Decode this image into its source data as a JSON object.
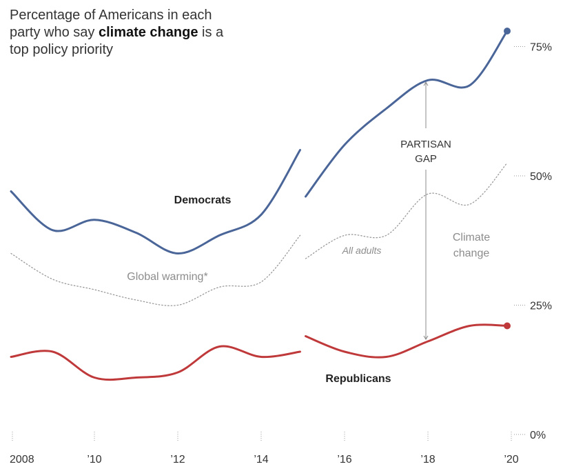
{
  "title": {
    "before": "Percentage of Americans in each party who say ",
    "bold": "climate change",
    "after": " is a top policy priority"
  },
  "colors": {
    "democrats": "#4a6598",
    "republicans": "#c0393a",
    "all_adults": "#999999",
    "text": "#333333",
    "muted": "#8c8c8c"
  },
  "chart_data": {
    "type": "line",
    "title": "Percentage of Americans in each party who say climate change is a top policy priority",
    "xlabel": "",
    "ylabel": "",
    "xlim": [
      2008,
      2020
    ],
    "ylim": [
      0,
      80
    ],
    "x_ticks": [
      {
        "value": 2008,
        "label": "2008"
      },
      {
        "value": 2010,
        "label": "’10"
      },
      {
        "value": 2012,
        "label": "’12"
      },
      {
        "value": 2014,
        "label": "’14"
      },
      {
        "value": 2016,
        "label": "’16"
      },
      {
        "value": 2018,
        "label": "’18"
      },
      {
        "value": 2020,
        "label": "’20"
      }
    ],
    "y_ticks": [
      {
        "value": 0,
        "label": "0%"
      },
      {
        "value": 25,
        "label": "25%"
      },
      {
        "value": 50,
        "label": "50%"
      },
      {
        "value": 75,
        "label": "75%"
      }
    ],
    "series": [
      {
        "name": "Democrats",
        "key": "dem",
        "segments": [
          {
            "x": [
              2008,
              2009,
              2010,
              2011,
              2012,
              2013,
              2014,
              2015
            ],
            "y": [
              47,
              39.5,
              41.5,
              39,
              35,
              38.5,
              42.5,
              55
            ]
          },
          {
            "x": [
              2015,
              2016,
              2017,
              2018,
              2019,
              2020
            ],
            "y": [
              46,
              56,
              63,
              68.5,
              67.5,
              78
            ]
          }
        ],
        "end_marker": true
      },
      {
        "name": "Republicans",
        "key": "rep",
        "segments": [
          {
            "x": [
              2008,
              2009,
              2010,
              2011,
              2012,
              2013,
              2014,
              2015
            ],
            "y": [
              15,
              16,
              11,
              11,
              12,
              17,
              15,
              16
            ]
          },
          {
            "x": [
              2015,
              2016,
              2017,
              2018,
              2019,
              2020
            ],
            "y": [
              19,
              16,
              15,
              18,
              21,
              21
            ]
          }
        ],
        "end_marker": true
      },
      {
        "name": "All adults",
        "key": "all",
        "segments": [
          {
            "x": [
              2008,
              2009,
              2010,
              2011,
              2012,
              2013,
              2014,
              2015
            ],
            "y": [
              35,
              30,
              28,
              26,
              25,
              28.5,
              29.5,
              38.5
            ]
          },
          {
            "x": [
              2015,
              2016,
              2017,
              2018,
              2019,
              2020
            ],
            "y": [
              34,
              38.5,
              38.5,
              46.5,
              44.5,
              52.5
            ]
          }
        ],
        "end_marker": false
      }
    ],
    "annotations": {
      "democrats_label": "Democrats",
      "republicans_label": "Republicans",
      "global_warming": "Global warming*",
      "all_adults": "All adults",
      "climate_line1": "Climate",
      "climate_line2": "change",
      "gap_line1": "PARTISAN",
      "gap_line2": "GAP",
      "gap_year": 2018,
      "gap_top": 68.5,
      "gap_bottom": 18
    }
  }
}
